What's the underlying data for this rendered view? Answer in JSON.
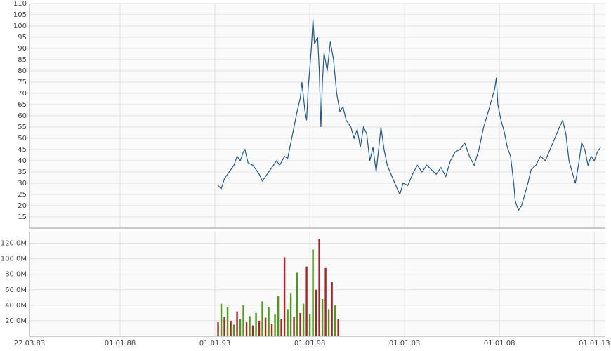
{
  "chart_data": [
    {
      "type": "line",
      "color": "#1f5a8c",
      "grid": true,
      "x": [
        "01.03.93",
        "01.05.93",
        "01.07.93",
        "01.10.93",
        "01.01.94",
        "01.03.94",
        "01.05.94",
        "01.07.94",
        "01.08.94",
        "01.10.94",
        "01.01.95",
        "01.03.95",
        "01.05.95",
        "01.07.95",
        "01.09.95",
        "01.11.95",
        "01.01.96",
        "01.04.96",
        "01.06.96",
        "01.09.96",
        "01.11.96",
        "01.01.97",
        "01.03.97",
        "01.05.97",
        "01.07.97",
        "01.08.97",
        "01.10.97",
        "01.11.97",
        "01.12.97",
        "01.02.98",
        "01.03.98",
        "01.04.98",
        "01.06.98",
        "01.07.98",
        "01.08.98",
        "01.09.98",
        "01.10.98",
        "01.12.98",
        "01.02.99",
        "01.04.99",
        "01.06.99",
        "01.08.99",
        "01.10.99",
        "01.12.99",
        "01.03.00",
        "01.05.00",
        "01.07.00",
        "01.09.00",
        "01.11.00",
        "01.01.01",
        "01.03.01",
        "01.05.01",
        "01.07.01",
        "01.09.01",
        "01.10.01",
        "01.12.01",
        "01.02.02",
        "01.05.02",
        "01.08.02",
        "01.10.02",
        "01.12.02",
        "01.03.03",
        "01.06.03",
        "01.09.03",
        "01.12.03",
        "01.03.04",
        "01.06.04",
        "01.09.04",
        "01.12.04",
        "01.03.05",
        "01.06.05",
        "01.09.05",
        "01.12.05",
        "01.03.06",
        "01.06.06",
        "01.09.06",
        "01.12.06",
        "01.03.07",
        "01.06.07",
        "01.08.07",
        "01.10.07",
        "01.11.07",
        "01.12.07",
        "01.02.08",
        "01.04.08",
        "01.06.08",
        "01.08.08",
        "01.10.08",
        "01.11.08",
        "01.01.09",
        "01.03.09",
        "01.05.09",
        "01.07.09",
        "01.09.09",
        "01.12.09",
        "01.03.10",
        "01.06.10",
        "01.09.10",
        "01.12.10",
        "01.03.11",
        "01.05.11",
        "01.07.11",
        "01.09.11",
        "01.11.11",
        "01.01.12",
        "01.03.12",
        "01.05.12",
        "01.07.12",
        "01.09.12",
        "01.11.12",
        "01.01.13",
        "01.03.13",
        "01.05.13"
      ],
      "values": [
        29,
        27.5,
        32,
        35,
        38,
        42,
        40,
        44,
        45,
        39,
        38,
        36,
        34,
        31,
        33,
        35,
        37,
        40,
        38,
        42,
        41,
        48,
        55,
        62,
        68,
        75,
        62,
        58,
        72,
        90,
        103,
        92,
        95,
        80,
        55,
        75,
        88,
        80,
        93,
        85,
        70,
        62,
        64,
        58,
        55,
        50,
        54,
        46,
        55,
        52,
        40,
        46,
        35,
        48,
        55,
        45,
        38,
        33,
        28,
        25,
        30,
        29,
        34,
        38,
        35,
        38,
        36,
        34,
        37,
        33,
        40,
        44,
        45,
        48,
        42,
        38,
        45,
        55,
        62,
        67,
        72,
        77,
        65,
        58,
        53,
        46,
        42,
        30,
        22,
        18,
        20,
        25,
        30,
        36,
        38,
        42,
        40,
        45,
        50,
        55,
        58,
        52,
        40,
        35,
        30,
        38,
        48,
        45,
        38,
        42,
        40,
        44,
        46
      ],
      "xlim": [
        "22.03.83",
        "01.08.13"
      ],
      "ylim": [
        10,
        110
      ],
      "yticks": [
        15,
        20,
        25,
        30,
        35,
        40,
        45,
        50,
        55,
        60,
        65,
        70,
        75,
        80,
        85,
        90,
        95,
        100,
        105,
        110
      ]
    },
    {
      "type": "bar",
      "grid": true,
      "x": [
        "01.03.93",
        "01.05.93",
        "01.07.93",
        "01.09.93",
        "01.11.93",
        "01.01.94",
        "01.03.94",
        "01.05.94",
        "01.07.94",
        "01.09.94",
        "01.11.94",
        "01.01.95",
        "01.03.95",
        "01.05.95",
        "01.07.95",
        "01.09.95",
        "01.11.95",
        "01.01.96",
        "01.03.96",
        "01.05.96",
        "01.07.96",
        "01.09.96",
        "01.11.96",
        "01.01.97",
        "01.03.97",
        "01.05.97",
        "01.07.97",
        "01.09.97",
        "01.11.97",
        "01.01.98",
        "01.03.98",
        "01.05.98",
        "01.07.98",
        "01.09.98",
        "01.11.98",
        "01.01.99",
        "01.03.99",
        "01.05.99",
        "01.07.99"
      ],
      "values": [
        18000000,
        42000000,
        25000000,
        38000000,
        20000000,
        15000000,
        32000000,
        22000000,
        40000000,
        18000000,
        26000000,
        14000000,
        30000000,
        20000000,
        45000000,
        24000000,
        38000000,
        16000000,
        28000000,
        52000000,
        22000000,
        102000000,
        35000000,
        55000000,
        25000000,
        82000000,
        30000000,
        42000000,
        90000000,
        28000000,
        112000000,
        60000000,
        126000000,
        48000000,
        88000000,
        35000000,
        70000000,
        40000000,
        22000000
      ],
      "colors": [
        "#a82424",
        "#4c9a1a",
        "#a82424",
        "#4c9a1a",
        "#a82424",
        "#4c9a1a",
        "#a82424",
        "#4c9a1a",
        "#4c9a1a",
        "#a82424",
        "#4c9a1a",
        "#a82424",
        "#4c9a1a",
        "#a82424",
        "#4c9a1a",
        "#a82424",
        "#4c9a1a",
        "#a82424",
        "#4c9a1a",
        "#4c9a1a",
        "#a82424",
        "#a82424",
        "#4c9a1a",
        "#4c9a1a",
        "#a82424",
        "#4c9a1a",
        "#a82424",
        "#4c9a1a",
        "#a82424",
        "#4c9a1a",
        "#4c9a1a",
        "#a82424",
        "#a82424",
        "#4c9a1a",
        "#a82424",
        "#4c9a1a",
        "#a82424",
        "#4c9a1a",
        "#a82424"
      ],
      "xlim": [
        "22.03.83",
        "01.08.13"
      ],
      "xticks": [
        "22.03.83",
        "01.01.88",
        "01.01.93",
        "01.01.98",
        "01.01.03",
        "01.01.08",
        "01.01.13"
      ],
      "ylim": [
        0,
        135000000
      ],
      "yticks": [
        {
          "value": 20000000,
          "label": "20.0M"
        },
        {
          "value": 40000000,
          "label": "40.0M"
        },
        {
          "value": 60000000,
          "label": "60.0M"
        },
        {
          "value": 80000000,
          "label": "80.0M"
        },
        {
          "value": 100000000,
          "label": "100.0M"
        },
        {
          "value": 120000000,
          "label": "120.0M"
        }
      ]
    }
  ]
}
